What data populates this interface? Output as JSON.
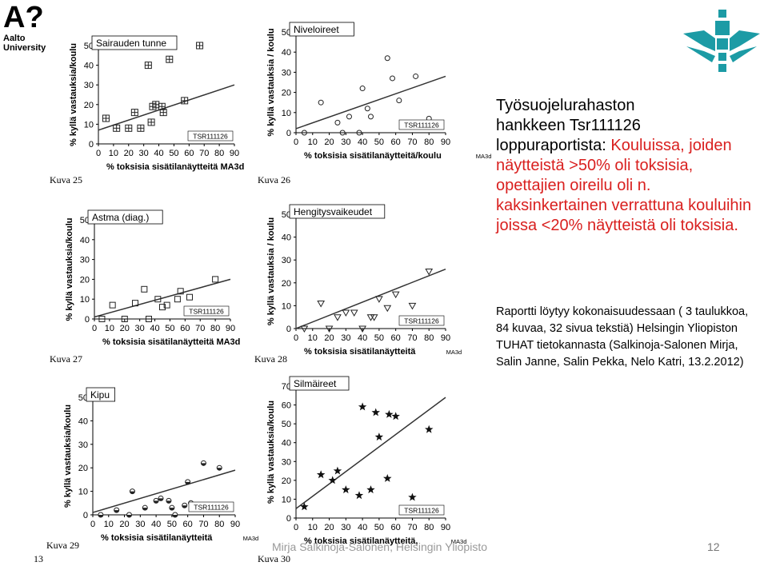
{
  "header": {
    "aalto_logo": "A?",
    "aalto_name": "Aalto University",
    "helsinki_logo_icon": "helsinki-flame-icon"
  },
  "right_panel": {
    "title_line1": "Työsuojelurahaston",
    "title_line2": "hankkeen Tsr111126",
    "title_line3": "loppuraportista: ",
    "title_red": "Kouluissa, joiden näytteistä >50% oli toksisia, opettajien oireilu oli n. kaksinkertainen verrattuna kouluihin joissa <20% näytteistä oli toksisia.",
    "report_text": "Raportti löytyy kokonaisuudessaan ( 3 taulukkoa, 84 kuvaa, 32 sivua tekstiä) Helsingin Yliopiston TUHAT tietokannasta (Salkinoja-Salonen Mirja,  Salin Janne, Salin Pekka, Nelo Katri, 13.2.2012)"
  },
  "footer": {
    "author": "Mirja Salkinoja-Salonen, Helsingin Yliopisto",
    "page_number": "12",
    "slide_label": "13"
  },
  "chart_data": [
    {
      "type": "scatter",
      "title": "Sairauden tunne",
      "caption": "Kuva  25",
      "badge": "TSR111126",
      "xlabel": "% toksisia sisätilanäytteitä MA3d",
      "ylabel": "% kyllä vastauksia/koulu",
      "xlim": [
        0,
        90
      ],
      "ylim": [
        0,
        50
      ],
      "xticks": [
        "0",
        "10",
        "20",
        "30",
        "40",
        "50",
        "60",
        "70",
        "80",
        "90"
      ],
      "yticks": [
        "0",
        "10",
        "20",
        "30",
        "40",
        "50"
      ],
      "marker": "square-cross",
      "x": [
        5,
        12,
        20,
        24,
        28,
        33,
        35,
        36,
        38,
        42,
        43,
        47,
        57,
        67
      ],
      "y": [
        13,
        8,
        8,
        16,
        8,
        40,
        11,
        19,
        20,
        19,
        16,
        43,
        22,
        50
      ],
      "trend": [
        [
          0,
          7
        ],
        [
          90,
          30
        ]
      ]
    },
    {
      "type": "scatter",
      "title": "Niveloireet",
      "caption": "Kuva  26",
      "badge": "TSR111126",
      "xlabel": "% toksisia sisätilanäytteitä/koulu",
      "xlabel_unit": "MA3d",
      "ylabel": "% kyllä vastauksia / koulu",
      "xlim": [
        0,
        90
      ],
      "ylim": [
        0,
        50
      ],
      "xticks": [
        "0",
        "10",
        "20",
        "30",
        "40",
        "50",
        "60",
        "70",
        "80",
        "90"
      ],
      "yticks": [
        "0",
        "10",
        "20",
        "30",
        "40",
        "50"
      ],
      "marker": "circle",
      "x": [
        5,
        15,
        25,
        28,
        32,
        38,
        40,
        43,
        45,
        55,
        58,
        62,
        72,
        80
      ],
      "y": [
        0,
        15,
        5,
        0,
        8,
        0,
        22,
        12,
        8,
        37,
        27,
        16,
        28,
        7
      ],
      "trend": [
        [
          0,
          2
        ],
        [
          90,
          28
        ]
      ]
    },
    {
      "type": "scatter",
      "title": "Astma (diag.)",
      "caption": "Kuva  27",
      "badge": "TSR111126",
      "xlabel": "% toksisia sisätilanäytteitä MA3d",
      "ylabel": "% kyllä vastauksia/koulu",
      "xlim": [
        0,
        90
      ],
      "ylim": [
        0,
        50
      ],
      "xticks": [
        "0",
        "10",
        "20",
        "30",
        "40",
        "50",
        "60",
        "70",
        "80",
        "90"
      ],
      "yticks": [
        "0",
        "10",
        "20",
        "30",
        "40",
        "50"
      ],
      "marker": "square",
      "x": [
        5,
        12,
        20,
        27,
        33,
        36,
        42,
        45,
        48,
        55,
        57,
        63,
        80
      ],
      "y": [
        0,
        7,
        0,
        8,
        15,
        0,
        10,
        6,
        7,
        10,
        14,
        11,
        20
      ],
      "trend": [
        [
          0,
          1
        ],
        [
          90,
          20
        ]
      ]
    },
    {
      "type": "scatter",
      "title": "Hengitysvaikeudet",
      "caption": "Kuva  28",
      "badge": "TSR111126",
      "xlabel": "% toksisia sisätilanäytteitä",
      "xlabel_unit": "MA3d",
      "ylabel": "% kyllä vastauksia / koulu",
      "xlim": [
        0,
        90
      ],
      "ylim": [
        0,
        50
      ],
      "xticks": [
        "0",
        "10",
        "20",
        "30",
        "40",
        "50",
        "60",
        "70",
        "80",
        "90"
      ],
      "yticks": [
        "0",
        "10",
        "20",
        "30",
        "40",
        "50"
      ],
      "marker": "triangle-down",
      "x": [
        5,
        15,
        20,
        25,
        30,
        35,
        40,
        45,
        47,
        50,
        55,
        60,
        70,
        80
      ],
      "y": [
        0,
        11,
        0,
        5,
        7,
        7,
        0,
        5,
        5,
        13,
        9,
        15,
        10,
        25
      ],
      "trend": [
        [
          0,
          0
        ],
        [
          90,
          26
        ]
      ]
    },
    {
      "type": "scatter",
      "title": "Kipu",
      "caption": "Kuva  29",
      "badge": "TSR111126",
      "xlabel": "% toksisia sisätilanäytteitä",
      "xlabel_unit": "MA3d",
      "ylabel": "% kyllä vastauksia/koulu",
      "xlim": [
        0,
        90
      ],
      "ylim": [
        0,
        50
      ],
      "xticks": [
        "0",
        "10",
        "20",
        "30",
        "40",
        "50",
        "60",
        "70",
        "80",
        "90"
      ],
      "yticks": [
        "0",
        "10",
        "20",
        "30",
        "40",
        "50"
      ],
      "marker": "half-filled-circle",
      "x": [
        5,
        15,
        23,
        25,
        33,
        40,
        43,
        48,
        50,
        52,
        58,
        60,
        62,
        70,
        80
      ],
      "y": [
        0,
        2,
        0,
        10,
        3,
        6,
        7,
        6,
        3,
        0,
        4,
        14,
        5,
        22,
        20
      ],
      "trend": [
        [
          0,
          1
        ],
        [
          90,
          19
        ]
      ]
    },
    {
      "type": "scatter",
      "title": "Silmäireet",
      "caption": "Kuva  30",
      "badge": "TSR111126",
      "xlabel": "% toksisia sisätilanäytteitä,",
      "xlabel_unit": "MA3d",
      "ylabel": "% kyllä vastauksia/koulu",
      "xlim": [
        0,
        90
      ],
      "ylim": [
        0,
        70
      ],
      "xticks": [
        "0",
        "10",
        "20",
        "30",
        "40",
        "50",
        "60",
        "70",
        "80",
        "90"
      ],
      "yticks": [
        "0",
        "10",
        "20",
        "30",
        "40",
        "50",
        "60",
        "70"
      ],
      "marker": "star",
      "x": [
        5,
        15,
        22,
        25,
        30,
        38,
        40,
        45,
        48,
        50,
        55,
        56,
        60,
        70,
        80
      ],
      "y": [
        6,
        23,
        20,
        25,
        15,
        12,
        59,
        15,
        56,
        43,
        21,
        55,
        54,
        11,
        47
      ],
      "trend": [
        [
          0,
          5
        ],
        [
          90,
          64
        ]
      ]
    }
  ]
}
